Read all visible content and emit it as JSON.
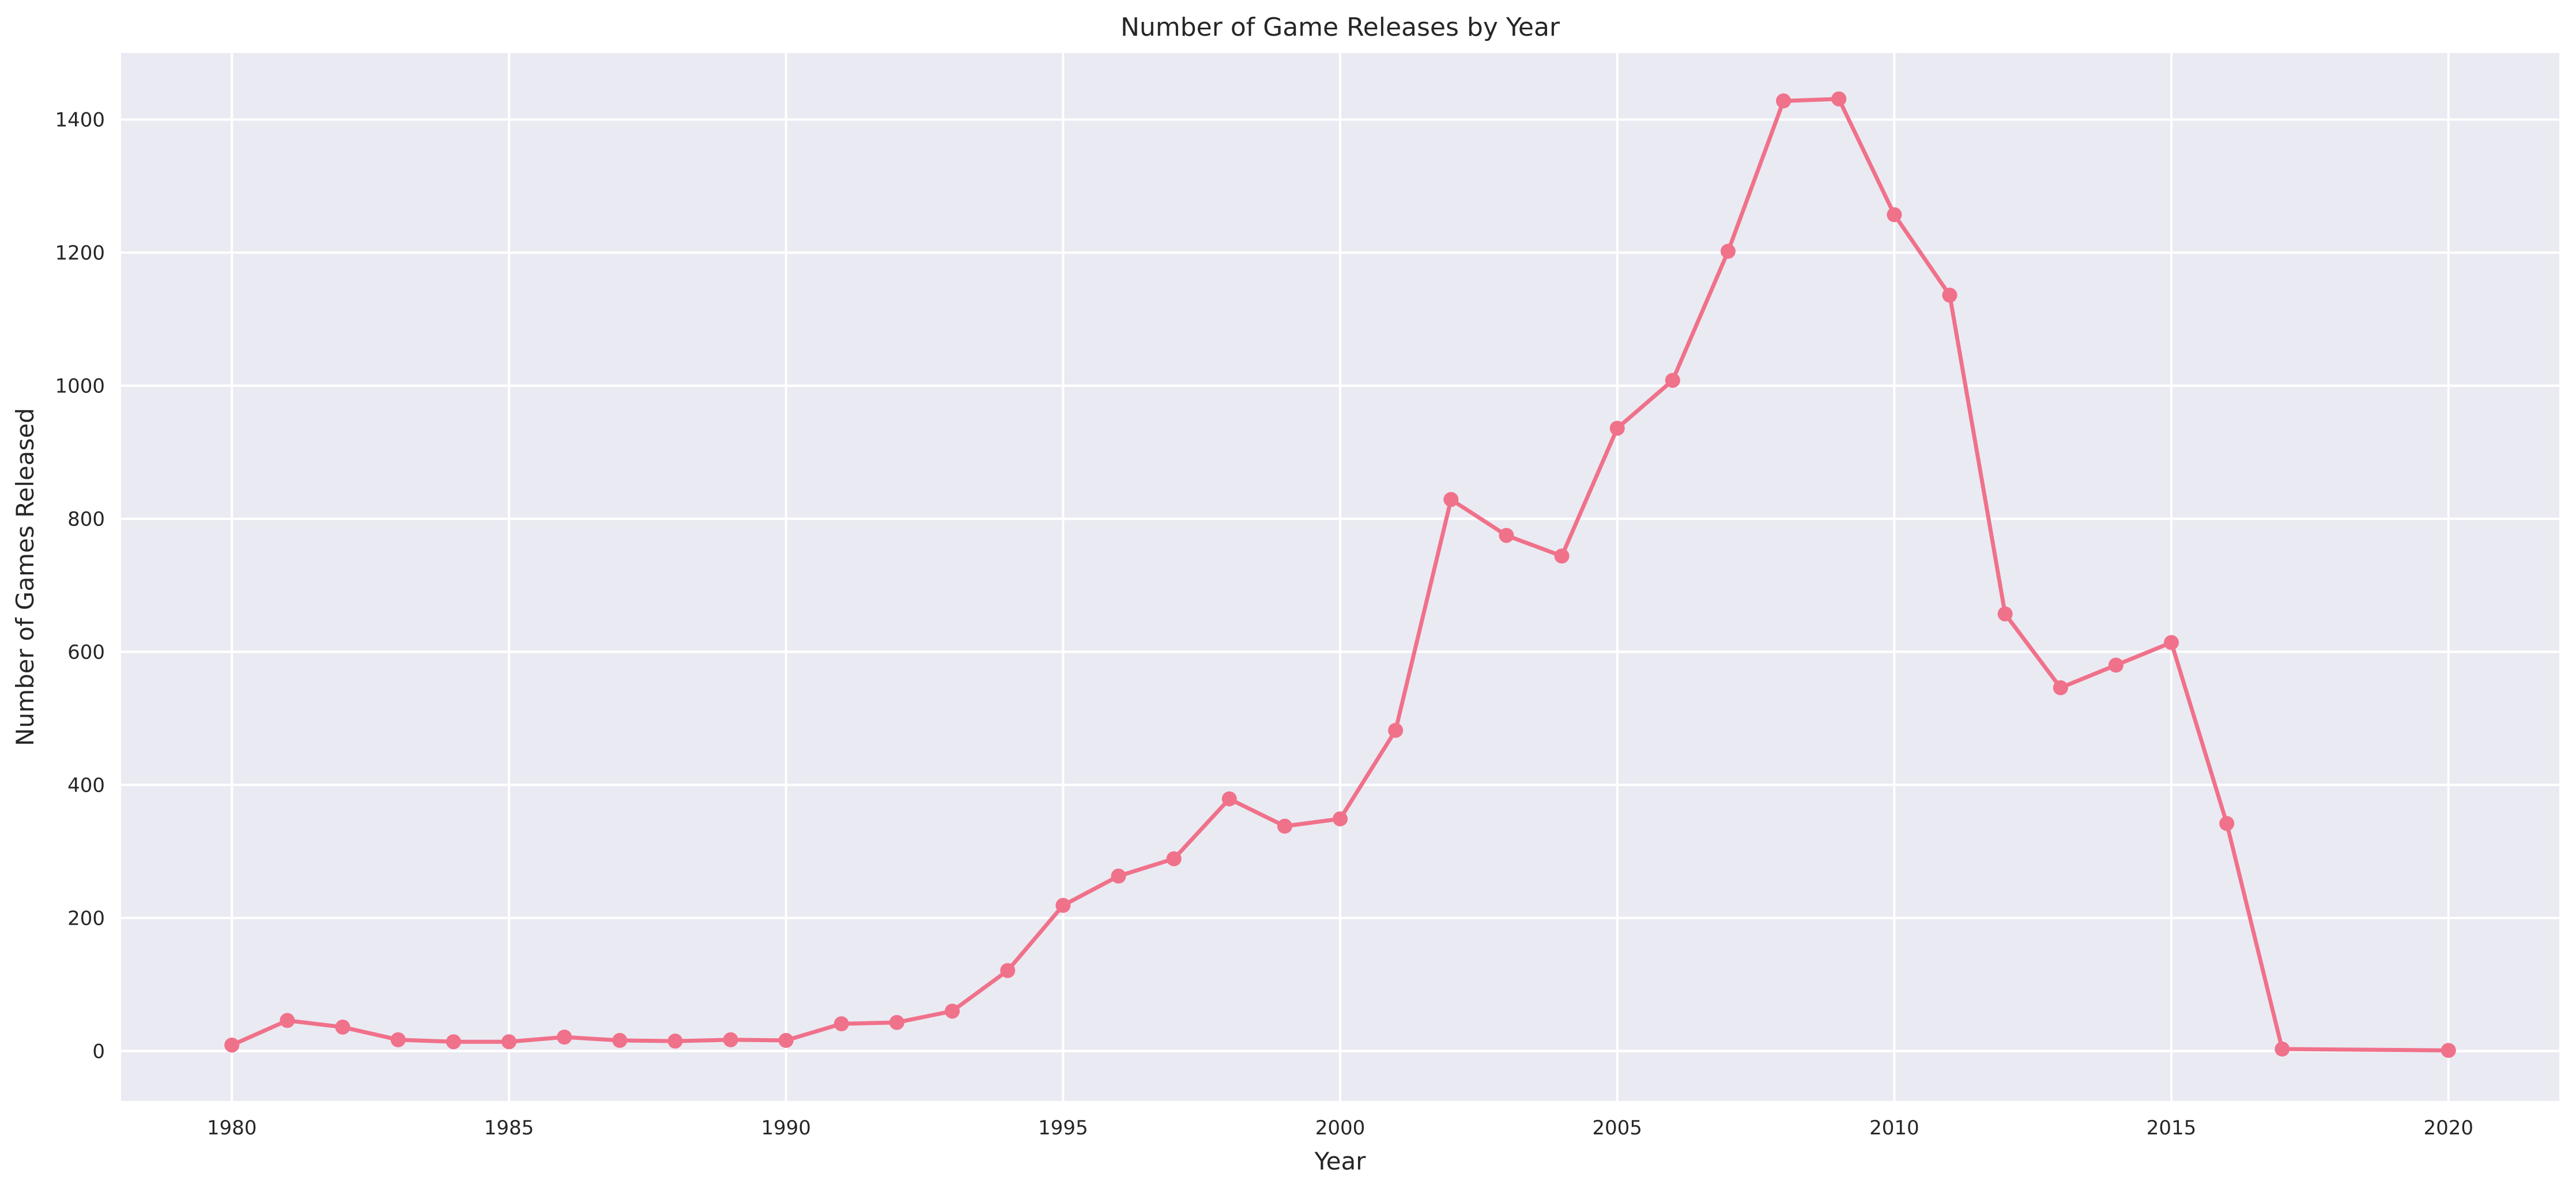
{
  "chart_data": {
    "type": "line",
    "title": "Number of Game Releases by Year",
    "xlabel": "Year",
    "ylabel": "Number of Games Released",
    "xlim": [
      1978,
      2022
    ],
    "ylim": [
      -75,
      1500
    ],
    "xticks": [
      1980,
      1985,
      1990,
      1995,
      2000,
      2005,
      2010,
      2015,
      2020
    ],
    "yticks": [
      0,
      200,
      400,
      600,
      800,
      1000,
      1200,
      1400
    ],
    "grid": true,
    "legend": "none",
    "series": [
      {
        "color": "#f0718a",
        "marker": "circle",
        "x": [
          1980,
          1981,
          1982,
          1983,
          1984,
          1985,
          1986,
          1987,
          1988,
          1989,
          1990,
          1991,
          1992,
          1993,
          1994,
          1995,
          1996,
          1997,
          1998,
          1999,
          2000,
          2001,
          2002,
          2003,
          2004,
          2005,
          2006,
          2007,
          2008,
          2009,
          2010,
          2011,
          2012,
          2013,
          2014,
          2015,
          2016,
          2017,
          2020
        ],
        "y": [
          9,
          46,
          36,
          17,
          14,
          14,
          21,
          16,
          15,
          17,
          16,
          41,
          43,
          60,
          121,
          219,
          263,
          289,
          379,
          338,
          349,
          482,
          829,
          775,
          744,
          936,
          1008,
          1202,
          1428,
          1431,
          1257,
          1136,
          657,
          546,
          580,
          614,
          342,
          3,
          1
        ]
      }
    ]
  }
}
